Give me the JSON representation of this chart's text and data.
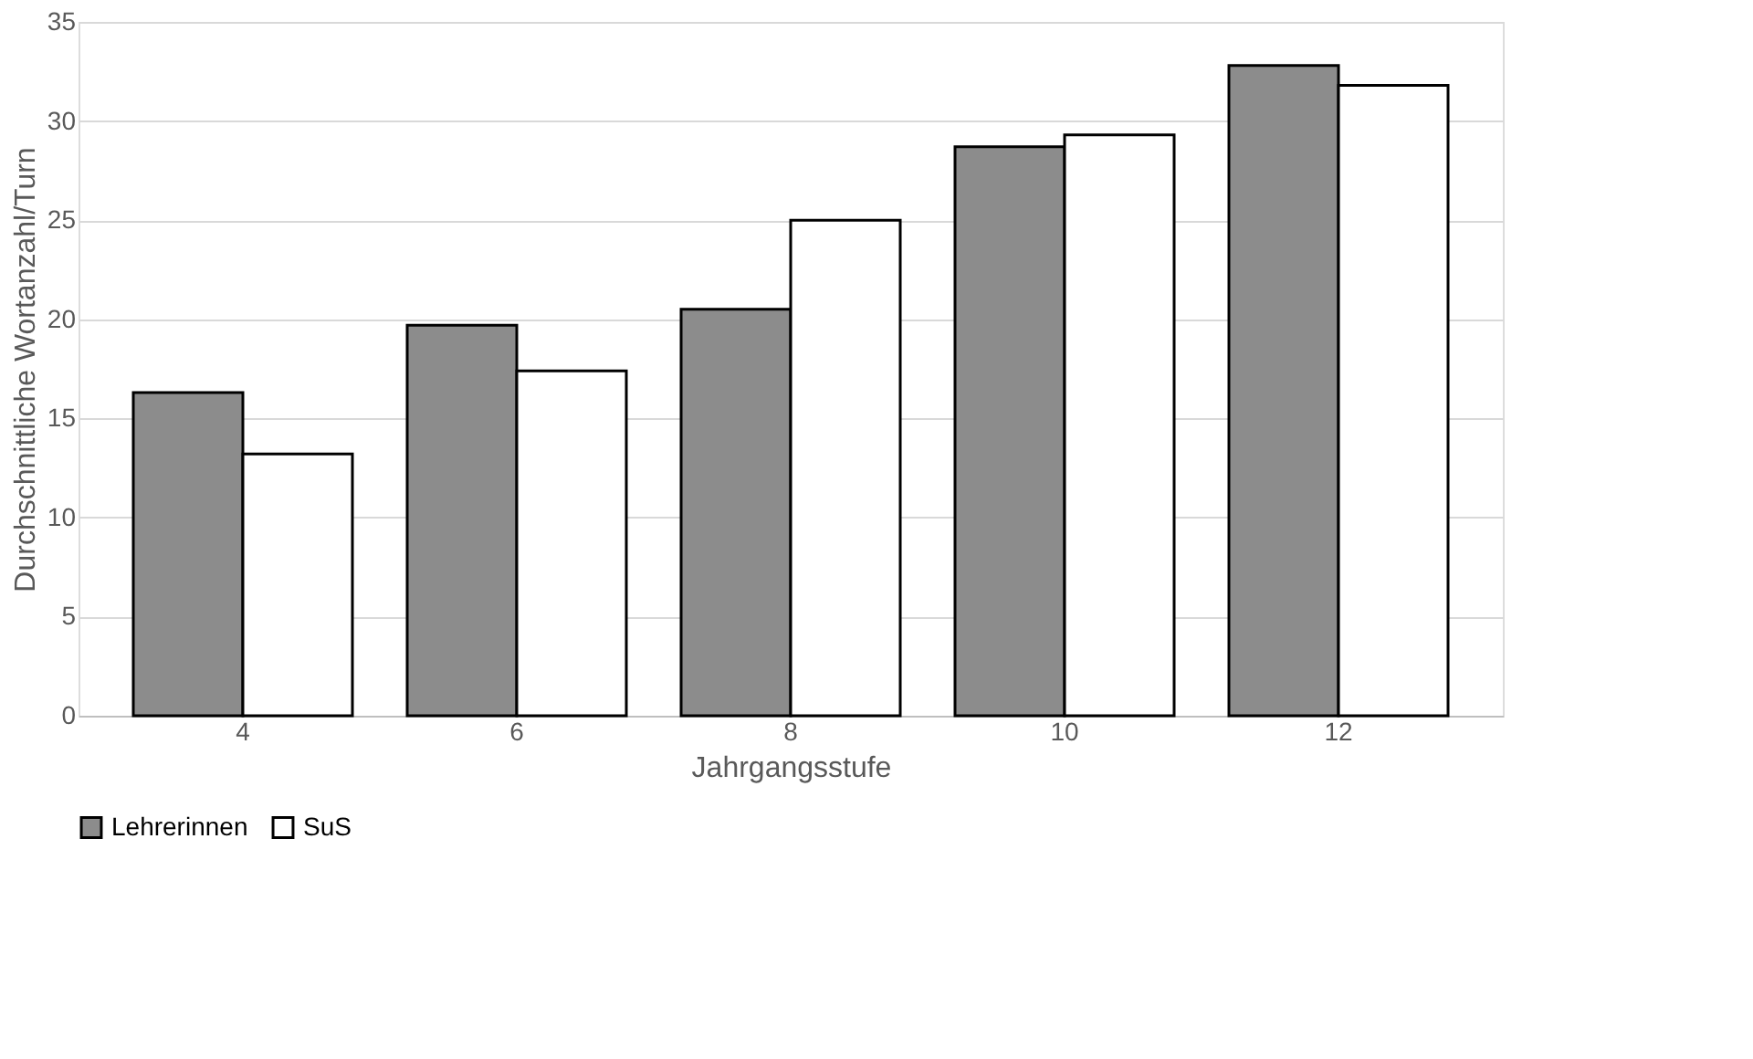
{
  "chart_data": {
    "type": "bar",
    "xlabel": "Jahrgangsstufe",
    "ylabel": "Durchschnittliche Wortanzahl/Turn",
    "categories": [
      "4",
      "6",
      "8",
      "10",
      "12"
    ],
    "series": [
      {
        "name": "Lehrerinnen",
        "color": "#8c8c8c",
        "values": [
          16.3,
          19.7,
          20.5,
          28.7,
          32.8
        ]
      },
      {
        "name": "SuS",
        "color": "#ffffff",
        "values": [
          13.2,
          17.4,
          25.0,
          29.3,
          31.8
        ]
      }
    ],
    "ylim": [
      0,
      35
    ],
    "yticks": [
      0,
      5,
      10,
      15,
      20,
      25,
      30,
      35
    ],
    "grid": "y",
    "legend": "bottom"
  }
}
